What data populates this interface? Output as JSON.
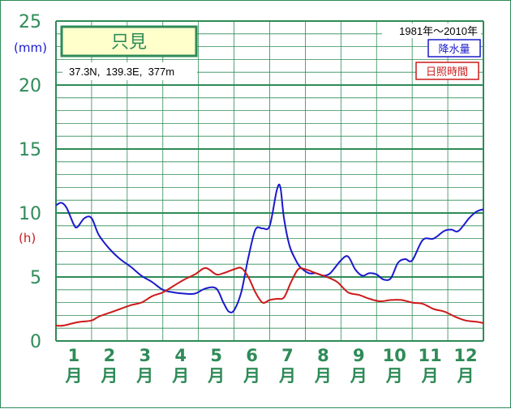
{
  "chart_data": {
    "type": "line",
    "station": "只見",
    "location": "37.3N,  139.3E,  377m",
    "period": "1981年〜2010年",
    "yunit_precip": "(mm)",
    "yunit_sun": "(h)",
    "yticks": [
      "0",
      "5",
      "10",
      "15",
      "20",
      "25"
    ],
    "ylim": [
      0,
      25
    ],
    "xlim": [
      0.5,
      12.5
    ],
    "months": [
      {
        "num": "1",
        "suffix": "月"
      },
      {
        "num": "2",
        "suffix": "月"
      },
      {
        "num": "3",
        "suffix": "月"
      },
      {
        "num": "4",
        "suffix": "月"
      },
      {
        "num": "5",
        "suffix": "月"
      },
      {
        "num": "6",
        "suffix": "月"
      },
      {
        "num": "7",
        "suffix": "月"
      },
      {
        "num": "8",
        "suffix": "月"
      },
      {
        "num": "9",
        "suffix": "月"
      },
      {
        "num": "10",
        "suffix": "月"
      },
      {
        "num": "11",
        "suffix": "月"
      },
      {
        "num": "12",
        "suffix": "月"
      }
    ],
    "grid": true,
    "series": [
      {
        "name": "降水量",
        "color": "#1a1acc",
        "x": [
          0.5,
          0.65,
          0.8,
          1.0,
          1.1,
          1.3,
          1.5,
          1.7,
          2.0,
          2.3,
          2.6,
          2.9,
          3.2,
          3.5,
          3.8,
          4.1,
          4.4,
          4.7,
          5.0,
          5.2,
          5.35,
          5.5,
          5.7,
          5.9,
          6.1,
          6.3,
          6.5,
          6.7,
          6.8,
          6.9,
          7.05,
          7.2,
          7.35,
          7.6,
          7.8,
          8.0,
          8.2,
          8.5,
          8.7,
          8.9,
          9.1,
          9.3,
          9.5,
          9.7,
          9.9,
          10.1,
          10.3,
          10.5,
          10.8,
          11.1,
          11.4,
          11.6,
          11.8,
          12.1,
          12.3,
          12.5
        ],
        "values": [
          10.6,
          10.8,
          10.4,
          9.1,
          8.9,
          9.6,
          9.6,
          8.3,
          7.2,
          6.4,
          5.8,
          5.1,
          4.6,
          4.0,
          3.8,
          3.7,
          3.7,
          4.1,
          4.1,
          3.0,
          2.3,
          2.4,
          3.8,
          6.5,
          8.7,
          8.8,
          9.0,
          11.8,
          12.0,
          9.6,
          7.5,
          6.5,
          5.8,
          5.3,
          5.3,
          5.1,
          5.3,
          6.3,
          6.6,
          5.6,
          5.1,
          5.3,
          5.2,
          4.8,
          4.9,
          6.1,
          6.4,
          6.3,
          7.9,
          8.0,
          8.6,
          8.7,
          8.6,
          9.6,
          10.1,
          10.3
        ]
      },
      {
        "name": "日照時間",
        "color": "#cc1a1a",
        "x": [
          0.5,
          0.7,
          1.0,
          1.2,
          1.5,
          1.7,
          2.0,
          2.3,
          2.6,
          2.9,
          3.2,
          3.5,
          3.8,
          4.1,
          4.4,
          4.7,
          5.0,
          5.2,
          5.5,
          5.7,
          5.9,
          6.1,
          6.3,
          6.5,
          6.7,
          6.9,
          7.1,
          7.3,
          7.5,
          7.8,
          8.1,
          8.4,
          8.7,
          9.0,
          9.3,
          9.6,
          9.9,
          10.2,
          10.5,
          10.8,
          11.1,
          11.4,
          11.7,
          12.0,
          12.3,
          12.5
        ],
        "values": [
          1.2,
          1.2,
          1.4,
          1.5,
          1.6,
          1.9,
          2.2,
          2.5,
          2.8,
          3.0,
          3.5,
          3.8,
          4.3,
          4.8,
          5.2,
          5.7,
          5.2,
          5.3,
          5.6,
          5.7,
          5.0,
          3.8,
          3.0,
          3.2,
          3.3,
          3.4,
          4.6,
          5.6,
          5.6,
          5.3,
          5.0,
          4.6,
          3.8,
          3.6,
          3.3,
          3.1,
          3.2,
          3.2,
          3.0,
          2.9,
          2.5,
          2.3,
          1.9,
          1.6,
          1.5,
          1.4
        ]
      }
    ]
  }
}
